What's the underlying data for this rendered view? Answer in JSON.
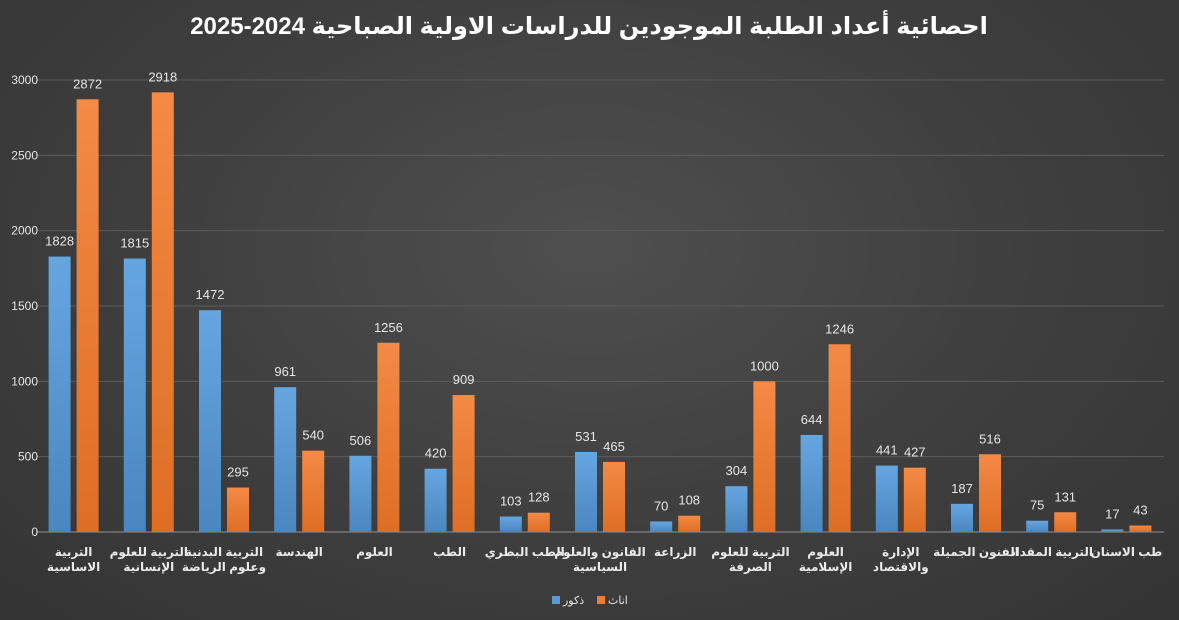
{
  "chart_data": {
    "type": "bar",
    "title": "احصائية أعداد الطلبة الموجودين للدراسات الاولية الصباحية 2024-2025",
    "xlabel": "",
    "ylabel": "",
    "ylim": [
      0,
      3000
    ],
    "yticks": [
      0,
      500,
      1000,
      1500,
      2000,
      2500,
      3000
    ],
    "grid": true,
    "legend_position": "bottom",
    "categories": [
      [
        "التربية",
        "الاساسية"
      ],
      [
        "التربية للعلوم",
        "الإنسانية"
      ],
      [
        "التربية البدنية",
        "وعلوم الرياضة"
      ],
      [
        "الهندسة"
      ],
      [
        "العلوم"
      ],
      [
        "الطب"
      ],
      [
        "الطب البطري"
      ],
      [
        "القانون والعلوم",
        "السياسية"
      ],
      [
        "الزراعة"
      ],
      [
        "التربية للعلوم",
        "الصرفة"
      ],
      [
        "العلوم",
        "الإسلامية"
      ],
      [
        "الإدارة",
        "والاقتصاد"
      ],
      [
        "الفنون الجميلة"
      ],
      [
        "التربية المقداد"
      ],
      [
        "طب الاسنان"
      ]
    ],
    "series": [
      {
        "name": "ذكور",
        "color": "#5b9bd5",
        "values": [
          1828,
          1815,
          1472,
          961,
          506,
          420,
          103,
          531,
          70,
          304,
          644,
          441,
          187,
          75,
          17
        ]
      },
      {
        "name": "اناث",
        "color": "#ed7d31",
        "values": [
          2872,
          2918,
          295,
          540,
          1256,
          909,
          128,
          465,
          108,
          1000,
          1246,
          427,
          516,
          131,
          43
        ]
      }
    ]
  }
}
